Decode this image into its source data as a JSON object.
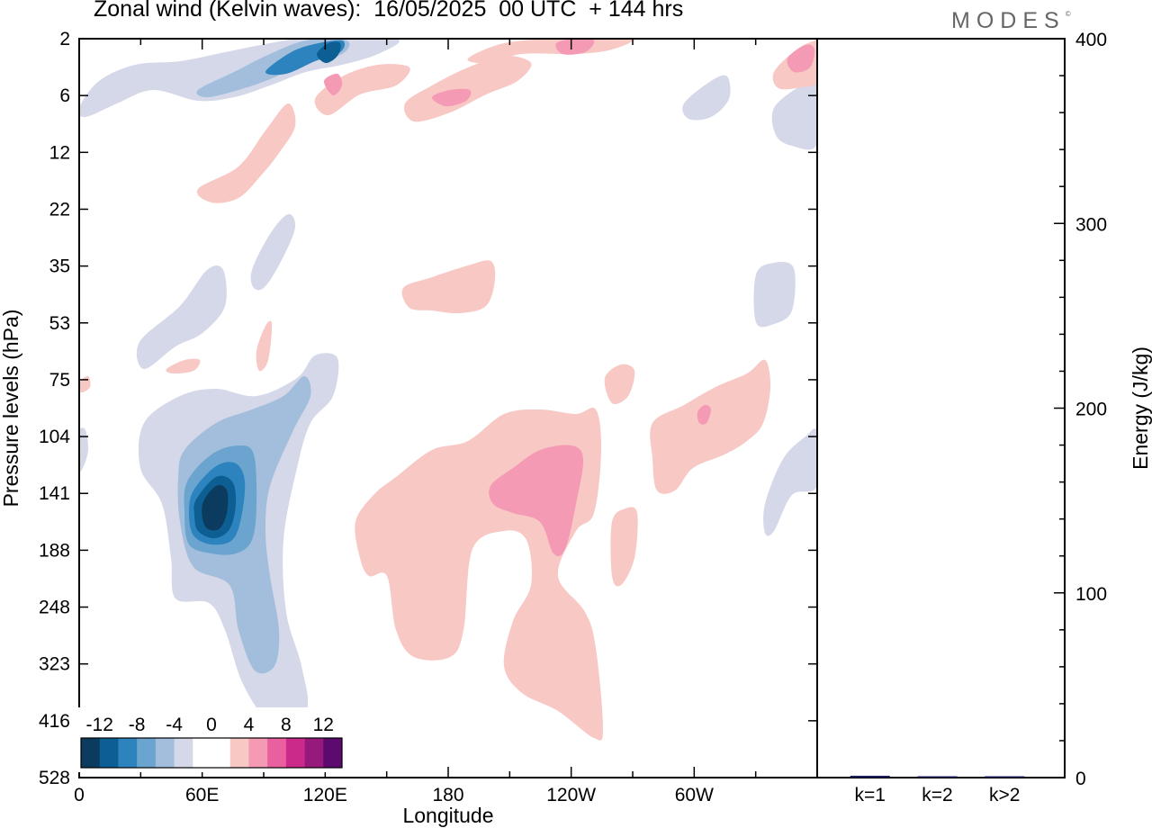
{
  "title": "Zonal wind (Kelvin waves):  16/05/2025  00 UTC  + 144 hrs",
  "logo": "MODES",
  "logo_mark": "©",
  "colors": {
    "negative": [
      "#0b3b5e",
      "#0d5f93",
      "#2c83bd",
      "#6aa4cf",
      "#a3bedc",
      "#d5d8e8"
    ],
    "zero": "#ffffff",
    "positive": [
      "#f8c8c4",
      "#f59ab5",
      "#ea5f9f",
      "#cc2a8a",
      "#961a7c",
      "#5c0a6e"
    ]
  },
  "chart_data": [
    {
      "type": "heatmap",
      "title": "Zonal wind (Kelvin waves):  16/05/2025  00 UTC  + 144 hrs",
      "xlabel": "Longitude",
      "ylabel": "Pressure levels (hPa)",
      "x_ticks": [
        "0",
        "60E",
        "120E",
        "180",
        "120W",
        "60W"
      ],
      "x_tick_degrees": [
        0,
        60,
        120,
        180,
        240,
        300
      ],
      "xlim": [
        0,
        360
      ],
      "y_ticks": [
        "2",
        "6",
        "12",
        "22",
        "35",
        "53",
        "75",
        "104",
        "141",
        "188",
        "248",
        "323",
        "416",
        "528"
      ],
      "y_scale": "level-index (log-like, top = 2 hPa, bottom = 528 hPa)",
      "colorbar_labels": [
        "-12",
        "-8",
        "-4",
        "0",
        "4",
        "8",
        "12"
      ],
      "contour_levels": [
        -12,
        -10,
        -8,
        -6,
        -4,
        -2,
        2,
        4,
        6,
        8,
        10,
        12
      ],
      "features": [
        {
          "sign": "negative",
          "max_abs": 10,
          "lon": 64,
          "level_hPa": 141
        },
        {
          "sign": "negative",
          "max_abs": 8,
          "lon": 122,
          "level_hPa": 2
        },
        {
          "sign": "positive",
          "max_abs": 5,
          "lon": 230,
          "level_hPa": 141
        },
        {
          "sign": "positive",
          "max_abs": 4,
          "lon": 188,
          "level_hPa": 6
        },
        {
          "sign": "positive",
          "max_abs": 4,
          "lon": 315,
          "level_hPa": 104
        }
      ]
    },
    {
      "type": "bar",
      "title": "",
      "xlabel": "",
      "ylabel": "Energy (J/kg)",
      "categories": [
        "k=1",
        "k=2",
        "k>2"
      ],
      "values": [
        1.0,
        0.2,
        0.5
      ],
      "ylim": [
        0,
        400
      ],
      "y_ticks": [
        "0",
        "100",
        "200",
        "300",
        "400"
      ],
      "bar_color": "#1a1a5e"
    }
  ]
}
